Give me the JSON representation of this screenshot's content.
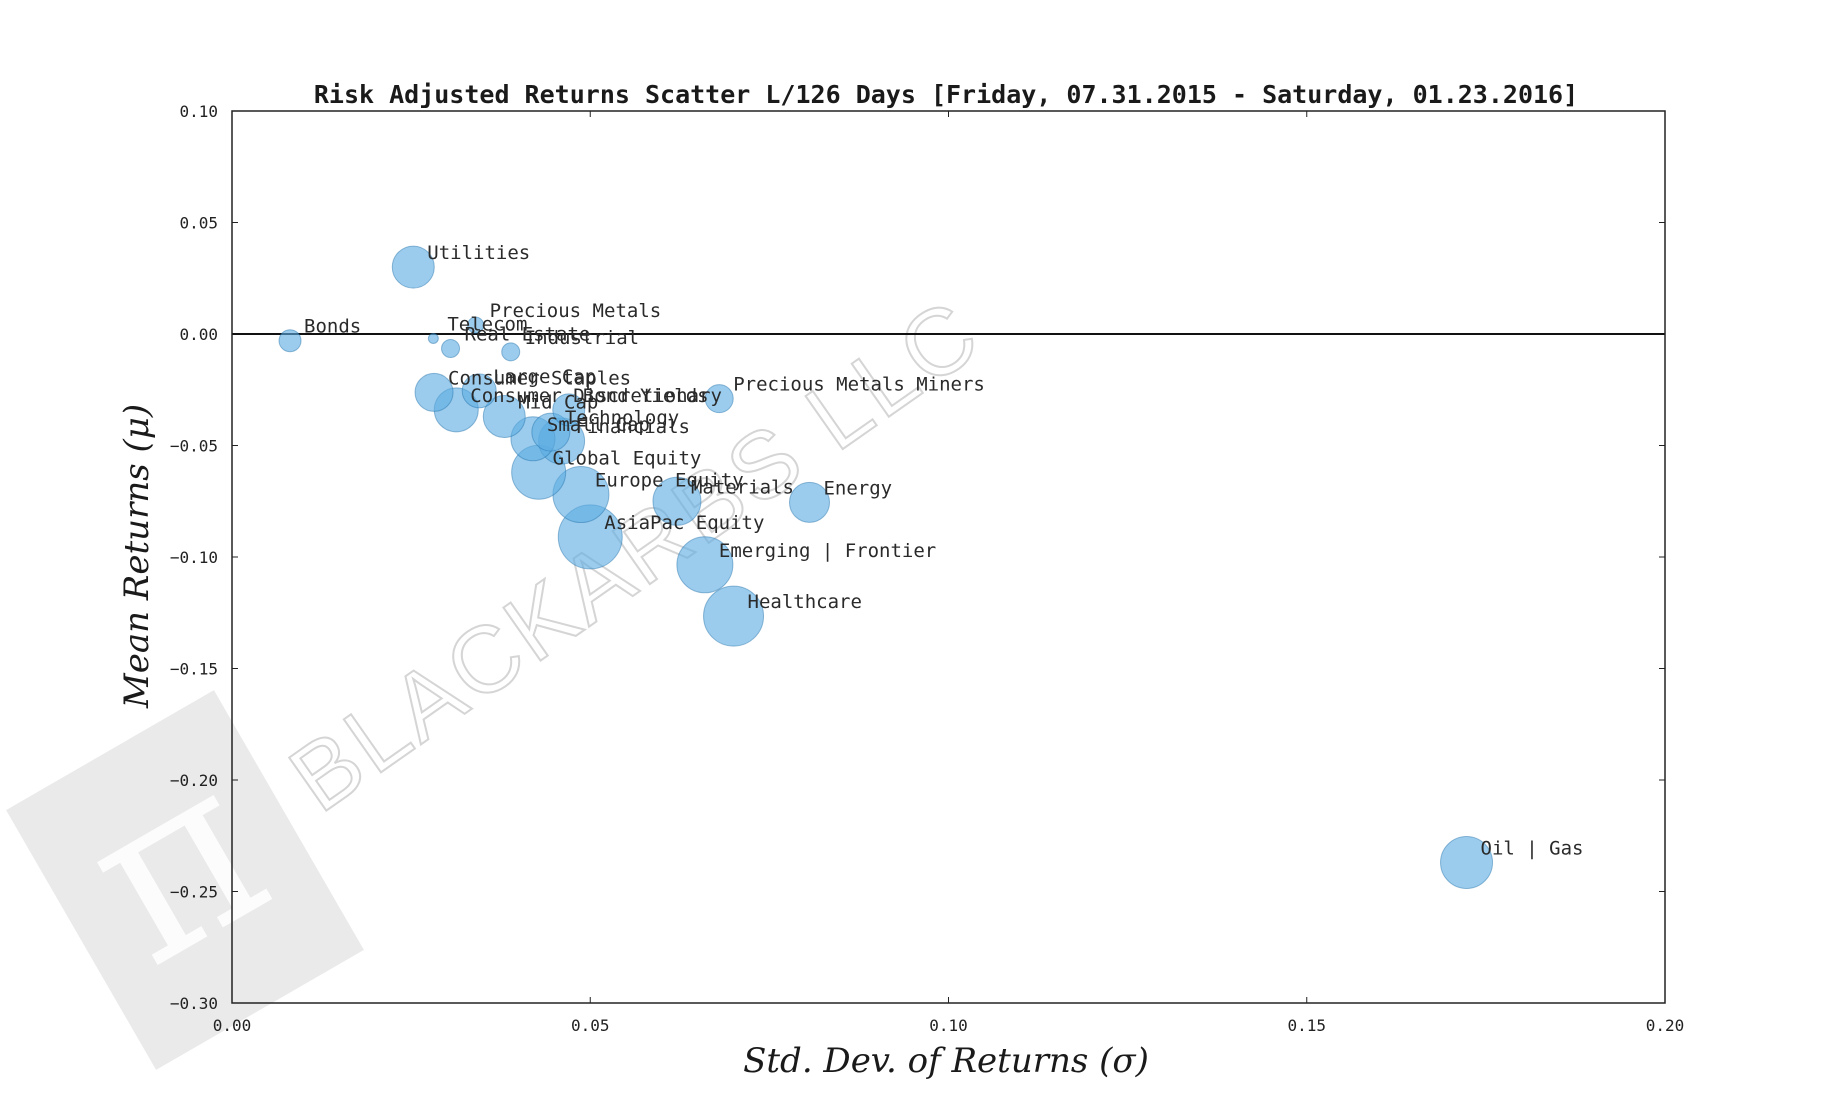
{
  "chart_data": {
    "type": "scatter",
    "title": "Risk Adjusted Returns Scatter L/126 Days [Friday, 07.31.2015 - Saturday, 01.23.2016]",
    "xlabel": "Std. Dev. of Returns (σ)",
    "ylabel": "Mean Returns (μ)",
    "xlim": [
      0.0,
      0.2
    ],
    "ylim": [
      -0.3,
      0.1
    ],
    "xticks": [
      "0.00",
      "0.05",
      "0.10",
      "0.15",
      "0.20"
    ],
    "yticks": [
      "0.10",
      "0.05",
      "0.00",
      "−0.05",
      "−0.10",
      "−0.15",
      "−0.20",
      "−0.25",
      "−0.30"
    ],
    "zero_line": 0.0,
    "grid": false,
    "marker_color": "#5dade2",
    "marker_edge": "#1f6fa8",
    "watermark": "BLACKARBS LLC",
    "points": [
      {
        "label": "Utilities",
        "x": 0.0253,
        "y": 0.03,
        "size": 21
      },
      {
        "label": "Bonds",
        "x": 0.0081,
        "y": -0.003,
        "size": 11
      },
      {
        "label": "Telecom",
        "x": 0.0281,
        "y": -0.002,
        "size": 5
      },
      {
        "label": "Precious Metals",
        "x": 0.034,
        "y": 0.004,
        "size": 8
      },
      {
        "label": "Real Estate",
        "x": 0.0305,
        "y": -0.0065,
        "size": 9
      },
      {
        "label": "Industrial",
        "x": 0.0389,
        "y": -0.008,
        "size": 9
      },
      {
        "label": "Consumer Staples",
        "x": 0.0282,
        "y": -0.0262,
        "size": 19
      },
      {
        "label": "Large Cap",
        "x": 0.0345,
        "y": -0.0255,
        "size": 17
      },
      {
        "label": "Consumer Discretionary",
        "x": 0.0313,
        "y": -0.034,
        "size": 22
      },
      {
        "label": "Mid Cap",
        "x": 0.038,
        "y": -0.037,
        "size": 21
      },
      {
        "label": "Bond Yields",
        "x": 0.047,
        "y": -0.034,
        "size": 16
      },
      {
        "label": "Technology",
        "x": 0.0445,
        "y": -0.044,
        "size": 19
      },
      {
        "label": "Financials",
        "x": 0.046,
        "y": -0.048,
        "size": 23
      },
      {
        "label": "Small Cap",
        "x": 0.042,
        "y": -0.047,
        "size": 22
      },
      {
        "label": "Precious Metals Miners",
        "x": 0.068,
        "y": -0.029,
        "size": 14
      },
      {
        "label": "Global Equity",
        "x": 0.0428,
        "y": -0.062,
        "size": 27
      },
      {
        "label": "Europe Equity",
        "x": 0.0487,
        "y": -0.072,
        "size": 28
      },
      {
        "label": "Materials",
        "x": 0.0621,
        "y": -0.075,
        "size": 24
      },
      {
        "label": "Energy",
        "x": 0.0806,
        "y": -0.0755,
        "size": 20
      },
      {
        "label": "AsiaPac Equity",
        "x": 0.05,
        "y": -0.091,
        "size": 32
      },
      {
        "label": "Emerging | Frontier",
        "x": 0.066,
        "y": -0.1035,
        "size": 28
      },
      {
        "label": "Healthcare",
        "x": 0.07,
        "y": -0.1265,
        "size": 30
      },
      {
        "label": "Oil | Gas",
        "x": 0.1723,
        "y": -0.237,
        "size": 26
      }
    ]
  }
}
